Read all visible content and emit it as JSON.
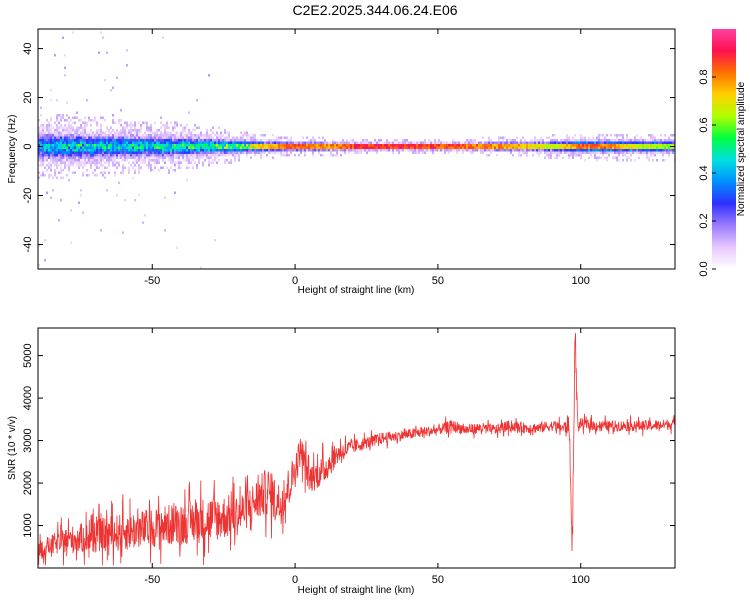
{
  "title": "C2E2.2025.344.06.24.E06",
  "colors": {
    "snr_line": "#ee3333",
    "axis": "#000000",
    "colormap": [
      "#ffffff",
      "#e7c8ff",
      "#9a7cff",
      "#3030ff",
      "#0090ff",
      "#00e0e0",
      "#00ff40",
      "#b0ff00",
      "#ffd000",
      "#ff7000",
      "#ff1050",
      "#ff40a0"
    ]
  },
  "chart_data": [
    {
      "type": "heatmap",
      "name": "spectrogram",
      "title": "",
      "xlabel": "Height of straight line (km)",
      "ylabel": "Frequency (Hz)",
      "xlim": [
        -90,
        133
      ],
      "ylim": [
        -50,
        48
      ],
      "xticks": [
        -50,
        0,
        50,
        100
      ],
      "xtick_labels": [
        "-50",
        "0",
        "50",
        "100"
      ],
      "yticks": [
        -40,
        -20,
        0,
        20,
        40
      ],
      "ytick_labels": [
        "-40",
        "-20",
        "0",
        "20",
        "40"
      ],
      "band_profile": {
        "x": [
          -90,
          -80,
          -70,
          -60,
          -50,
          -40,
          -30,
          -20,
          -10,
          0,
          10,
          20,
          30,
          40,
          50,
          60,
          70,
          80,
          90,
          100,
          110,
          120,
          133
        ],
        "half_width_hz": [
          8,
          8,
          7.5,
          7,
          6.5,
          6,
          5,
          4,
          3,
          2.5,
          2.5,
          2,
          2,
          2,
          2,
          2,
          2.5,
          2.5,
          3,
          3.5,
          3.5,
          3.5,
          3.5
        ],
        "peak_amplitude": [
          0.45,
          0.5,
          0.5,
          0.52,
          0.52,
          0.55,
          0.6,
          0.7,
          0.8,
          0.9,
          0.85,
          0.92,
          0.95,
          0.95,
          0.92,
          0.9,
          0.85,
          0.8,
          0.7,
          0.9,
          0.85,
          0.7,
          0.65
        ]
      },
      "colorbar": {
        "label": "Normalized spectral amplitude",
        "range": [
          0,
          1
        ],
        "ticks": [
          0.0,
          0.2,
          0.4,
          0.6,
          0.8
        ],
        "tick_labels": [
          "0.0",
          "0.2",
          "0.4",
          "0.6",
          "0.8"
        ]
      }
    },
    {
      "type": "line",
      "name": "snr",
      "title": "",
      "xlabel": "Height of straight line (km)",
      "ylabel": "SNR (10 * v/v)",
      "xlim": [
        -90,
        133
      ],
      "ylim": [
        0,
        5650
      ],
      "xticks": [
        -50,
        0,
        50,
        100
      ],
      "xtick_labels": [
        "-50",
        "0",
        "50",
        "100"
      ],
      "yticks": [
        1000,
        2000,
        3000,
        4000,
        5000
      ],
      "ytick_labels": [
        "1000",
        "2000",
        "3000",
        "4000",
        "5000"
      ],
      "series": [
        {
          "name": "SNR",
          "x": [
            -90,
            -85,
            -80,
            -75,
            -70,
            -65,
            -60,
            -55,
            -50,
            -45,
            -40,
            -35,
            -30,
            -25,
            -20,
            -15,
            -10,
            -5,
            0,
            2,
            5,
            10,
            15,
            20,
            25,
            30,
            35,
            40,
            45,
            50,
            55,
            60,
            65,
            70,
            75,
            80,
            85,
            90,
            94,
            96,
            97,
            98,
            99,
            100,
            105,
            110,
            115,
            120,
            125,
            133
          ],
          "y": [
            400,
            550,
            650,
            700,
            750,
            800,
            850,
            900,
            950,
            1000,
            1050,
            1100,
            1150,
            1200,
            1250,
            1500,
            1800,
            1500,
            2300,
            2800,
            2100,
            2300,
            2700,
            2850,
            2950,
            3050,
            3100,
            3150,
            3200,
            3250,
            3350,
            3250,
            3300,
            3250,
            3350,
            3300,
            3300,
            3350,
            3300,
            3400,
            300,
            5500,
            3300,
            3400,
            3350,
            3350,
            3350,
            3350,
            3350,
            3400
          ],
          "noise_amplitude": [
            300,
            350,
            450,
            500,
            550,
            600,
            650,
            650,
            650,
            700,
            700,
            750,
            800,
            750,
            700,
            700,
            800,
            700,
            600,
            500,
            500,
            500,
            350,
            250,
            200,
            200,
            180,
            180,
            180,
            180,
            200,
            180,
            180,
            180,
            180,
            180,
            180,
            180,
            180,
            400,
            400,
            400,
            200,
            180,
            180,
            180,
            180,
            180,
            180,
            180
          ]
        }
      ]
    }
  ]
}
